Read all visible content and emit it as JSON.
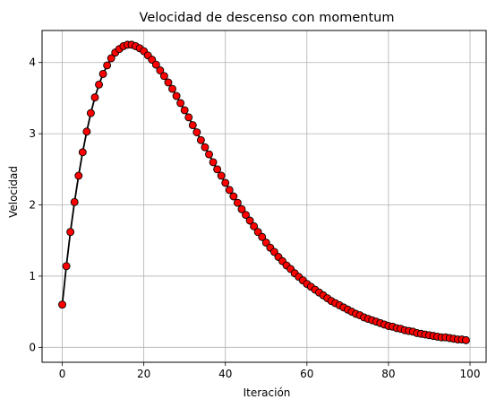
{
  "chart_data": {
    "type": "line",
    "title": "Velocidad de descenso con momentum",
    "xlabel": "Iteración",
    "ylabel": "Velocidad",
    "xlim": [
      -4.95,
      103.95
    ],
    "ylim": [
      -0.21,
      4.45
    ],
    "x_ticks": [
      0,
      20,
      40,
      60,
      80,
      100
    ],
    "y_ticks": [
      0,
      1,
      2,
      3,
      4
    ],
    "x_tick_labels": [
      "0",
      "20",
      "40",
      "60",
      "80",
      "100"
    ],
    "y_tick_labels": [
      "0",
      "1",
      "2",
      "3",
      "4"
    ],
    "grid": true,
    "legend": "none",
    "line_color": "#000000",
    "marker_fill": "#ff0000",
    "marker_edge": "#000000",
    "series": [
      {
        "x": [
          0,
          1,
          2,
          3,
          4,
          5,
          6,
          7,
          8,
          9,
          10,
          11,
          12,
          13,
          14,
          15,
          16,
          17,
          18,
          19,
          20,
          21,
          22,
          23,
          24,
          25,
          26,
          27,
          28,
          29,
          30,
          31,
          32,
          33,
          34,
          35,
          36,
          37,
          38,
          39,
          40,
          41,
          42,
          43,
          44,
          45,
          46,
          47,
          48,
          49,
          50,
          51,
          52,
          53,
          54,
          55,
          56,
          57,
          58,
          59,
          60,
          61,
          62,
          63,
          64,
          65,
          66,
          67,
          68,
          69,
          70,
          71,
          72,
          73,
          74,
          75,
          76,
          77,
          78,
          79,
          80,
          81,
          82,
          83,
          84,
          85,
          86,
          87,
          88,
          89,
          90,
          91,
          92,
          93,
          94,
          95,
          96,
          97,
          98,
          99
        ],
        "values": [
          0.6,
          1.14,
          1.62,
          2.04,
          2.41,
          2.74,
          3.03,
          3.29,
          3.51,
          3.69,
          3.84,
          3.96,
          4.06,
          4.14,
          4.19,
          4.23,
          4.25,
          4.25,
          4.23,
          4.2,
          4.16,
          4.1,
          4.04,
          3.97,
          3.89,
          3.81,
          3.72,
          3.63,
          3.53,
          3.43,
          3.33,
          3.23,
          3.12,
          3.02,
          2.91,
          2.81,
          2.71,
          2.6,
          2.5,
          2.41,
          2.31,
          2.21,
          2.12,
          2.03,
          1.94,
          1.86,
          1.78,
          1.7,
          1.62,
          1.55,
          1.47,
          1.4,
          1.34,
          1.27,
          1.21,
          1.15,
          1.1,
          1.04,
          0.99,
          0.94,
          0.89,
          0.85,
          0.81,
          0.77,
          0.73,
          0.69,
          0.65,
          0.62,
          0.59,
          0.56,
          0.53,
          0.5,
          0.47,
          0.45,
          0.42,
          0.4,
          0.38,
          0.36,
          0.34,
          0.32,
          0.3,
          0.29,
          0.27,
          0.26,
          0.24,
          0.23,
          0.22,
          0.2,
          0.19,
          0.18,
          0.17,
          0.16,
          0.15,
          0.14,
          0.14,
          0.13,
          0.12,
          0.11,
          0.11,
          0.1
        ]
      }
    ]
  }
}
